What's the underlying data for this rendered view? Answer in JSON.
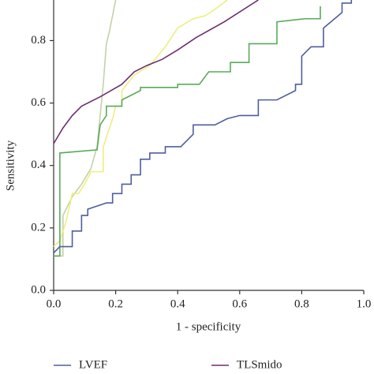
{
  "chart_data": {
    "type": "line",
    "x_label": "1 - specificity",
    "y_label": "Sensitivity",
    "xlim": [
      0,
      1
    ],
    "ylim": [
      0,
      0.93
    ],
    "xticks": [
      {
        "value": 0,
        "label": "0.0"
      },
      {
        "value": 0.2,
        "label": "0.2"
      },
      {
        "value": 0.4,
        "label": "0.4"
      },
      {
        "value": 0.6,
        "label": "0.6"
      },
      {
        "value": 0.8,
        "label": "0.8"
      },
      {
        "value": 1,
        "label": "1.0"
      }
    ],
    "yticks": [
      {
        "value": 0,
        "label": "0.0"
      },
      {
        "value": 0.2,
        "label": "0.2"
      },
      {
        "value": 0.4,
        "label": "0.4"
      },
      {
        "value": 0.6,
        "label": "0.6"
      },
      {
        "value": 0.8,
        "label": "0.8"
      }
    ],
    "series": [
      {
        "color": "#c2d2a8",
        "x": [
          0,
          0.03,
          0.03,
          0.06,
          0.09,
          0.12,
          0.14,
          0.16,
          0.17,
          0.18,
          0.2
        ],
        "values": [
          0.11,
          0.11,
          0.24,
          0.3,
          0.34,
          0.39,
          0.46,
          0.66,
          0.79,
          0.83,
          0.93
        ]
      },
      {
        "color": "#eeee80",
        "x": [
          0,
          0.02,
          0.04,
          0.06,
          0.08,
          0.1,
          0.12,
          0.16,
          0.16,
          0.19,
          0.2,
          0.22,
          0.22,
          0.26,
          0.31,
          0.36,
          0.4,
          0.45,
          0.49,
          0.52,
          0.56
        ],
        "values": [
          0.14,
          0.16,
          0.22,
          0.31,
          0.31,
          0.34,
          0.38,
          0.38,
          0.46,
          0.55,
          0.59,
          0.59,
          0.64,
          0.69,
          0.72,
          0.78,
          0.84,
          0.87,
          0.88,
          0.9,
          0.93
        ]
      },
      {
        "color": "#5aaa5a",
        "x": [
          0,
          0.02,
          0.02,
          0.14,
          0.15,
          0.17,
          0.17,
          0.22,
          0.22,
          0.28,
          0.28,
          0.4,
          0.4,
          0.47,
          0.5,
          0.57,
          0.57,
          0.63,
          0.63,
          0.72,
          0.72,
          0.81,
          0.86,
          0.86
        ],
        "values": [
          0.11,
          0.11,
          0.44,
          0.45,
          0.53,
          0.56,
          0.59,
          0.59,
          0.61,
          0.64,
          0.65,
          0.65,
          0.66,
          0.66,
          0.7,
          0.7,
          0.73,
          0.73,
          0.79,
          0.79,
          0.86,
          0.87,
          0.87,
          0.91
        ]
      },
      {
        "name": "LVEF",
        "color": "#4f5e9c",
        "x": [
          0,
          0.02,
          0.06,
          0.06,
          0.09,
          0.09,
          0.11,
          0.11,
          0.14,
          0.17,
          0.19,
          0.19,
          0.22,
          0.22,
          0.25,
          0.25,
          0.28,
          0.28,
          0.31,
          0.31,
          0.36,
          0.36,
          0.41,
          0.43,
          0.45,
          0.45,
          0.52,
          0.56,
          0.6,
          0.66,
          0.66,
          0.72,
          0.78,
          0.78,
          0.8,
          0.8,
          0.83,
          0.87,
          0.87,
          0.93,
          0.93,
          0.96,
          0.96
        ],
        "values": [
          0.12,
          0.14,
          0.14,
          0.19,
          0.19,
          0.24,
          0.24,
          0.26,
          0.27,
          0.28,
          0.28,
          0.31,
          0.31,
          0.34,
          0.34,
          0.37,
          0.37,
          0.42,
          0.42,
          0.44,
          0.44,
          0.46,
          0.46,
          0.48,
          0.5,
          0.53,
          0.53,
          0.55,
          0.56,
          0.56,
          0.61,
          0.61,
          0.64,
          0.66,
          0.66,
          0.75,
          0.78,
          0.78,
          0.84,
          0.89,
          0.92,
          0.92,
          0.93
        ]
      },
      {
        "name": "TLSmido",
        "color": "#6e2e70",
        "x": [
          0,
          0.03,
          0.06,
          0.09,
          0.15,
          0.22,
          0.26,
          0.3,
          0.35,
          0.4,
          0.46,
          0.55,
          0.66
        ],
        "values": [
          0.47,
          0.52,
          0.56,
          0.59,
          0.62,
          0.66,
          0.7,
          0.72,
          0.74,
          0.77,
          0.81,
          0.86,
          0.93
        ]
      }
    ]
  }
}
